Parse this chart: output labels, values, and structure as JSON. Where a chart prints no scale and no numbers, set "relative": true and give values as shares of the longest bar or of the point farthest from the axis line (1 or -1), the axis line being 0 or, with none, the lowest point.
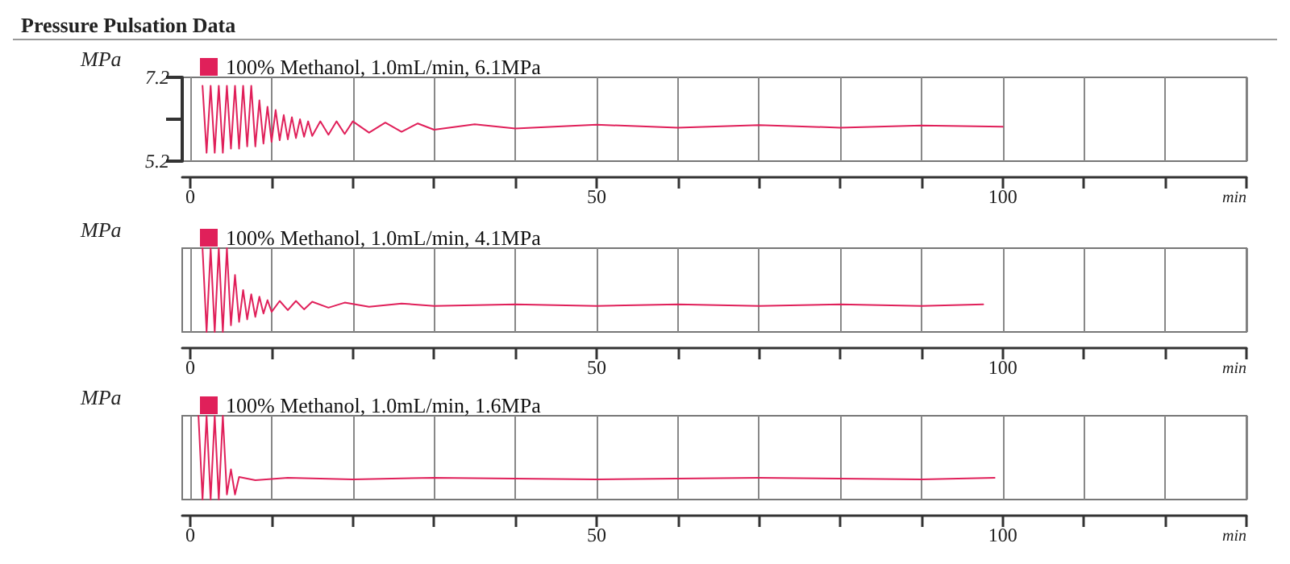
{
  "chart_data": [
    {
      "type": "line",
      "title": "Pressure Pulsation Data",
      "ylabel": "MPa",
      "xlabel": "min",
      "legend": "top left",
      "grid": "x",
      "marker": "none",
      "xlim": [
        -1,
        130
      ],
      "xticks": [
        0,
        {
          "value": 10,
          "label": null
        },
        {
          "value": 20,
          "label": null
        },
        {
          "value": 30,
          "label": null
        },
        {
          "value": 40,
          "label": null
        },
        50,
        {
          "value": 60,
          "label": null
        },
        {
          "value": 70,
          "label": null
        },
        {
          "value": 80,
          "label": null
        },
        {
          "value": 90,
          "label": null
        },
        100,
        {
          "value": 110,
          "label": null
        },
        {
          "value": 120,
          "label": null
        },
        {
          "value": 130,
          "label": null
        }
      ],
      "ylim": [
        5.2,
        7.2
      ],
      "yticks": [
        5.2,
        {
          "value": 6.2,
          "label": null
        },
        7.2
      ],
      "series": [
        {
          "name": "100% Methanol, 1.0mL/min, 6.1MPa",
          "color": "#e0205a",
          "x": [
            1.5,
            2.0,
            2.5,
            3.0,
            3.5,
            4.0,
            4.5,
            5.0,
            5.5,
            6.0,
            6.5,
            7.0,
            7.5,
            8.0,
            8.5,
            9.0,
            9.5,
            10.0,
            10.5,
            11.0,
            11.5,
            12.0,
            12.5,
            13.0,
            13.5,
            14.0,
            14.5,
            15,
            16,
            17,
            18,
            19,
            20,
            22,
            24,
            26,
            28,
            30,
            35,
            40,
            50,
            60,
            70,
            80,
            90,
            100
          ],
          "values": [
            7.0,
            5.4,
            7.0,
            5.4,
            7.0,
            5.4,
            7.0,
            5.5,
            7.0,
            5.5,
            7.0,
            5.55,
            7.0,
            5.55,
            6.65,
            5.62,
            6.5,
            5.66,
            6.42,
            5.7,
            6.3,
            5.72,
            6.25,
            5.75,
            6.2,
            5.78,
            6.15,
            5.8,
            6.15,
            5.83,
            6.15,
            5.85,
            6.15,
            5.88,
            6.12,
            5.9,
            6.1,
            5.95,
            6.08,
            5.98,
            6.07,
            6.0,
            6.06,
            6.0,
            6.05,
            6.02
          ]
        }
      ]
    },
    {
      "type": "line",
      "ylabel": "MPa",
      "xlabel": "min",
      "legend": "top left",
      "grid": "x",
      "marker": "none",
      "relative": true,
      "tick_labels": "x",
      "xlim": [
        -1,
        130
      ],
      "xticks": [
        0,
        {
          "value": 10,
          "label": null
        },
        {
          "value": 20,
          "label": null
        },
        {
          "value": 30,
          "label": null
        },
        {
          "value": 40,
          "label": null
        },
        50,
        {
          "value": 60,
          "label": null
        },
        {
          "value": 70,
          "label": null
        },
        {
          "value": 80,
          "label": null
        },
        {
          "value": 90,
          "label": null
        },
        100,
        {
          "value": 110,
          "label": null
        },
        {
          "value": 120,
          "label": null
        },
        {
          "value": 130,
          "label": null
        }
      ],
      "series": [
        {
          "name": "100% Methanol, 1.0mL/min, 4.1MPa",
          "color": "#e0205a",
          "x": [
            1.5,
            2.0,
            2.5,
            3.0,
            3.5,
            4.0,
            4.5,
            5.0,
            5.5,
            6.0,
            6.5,
            7.0,
            7.5,
            8.0,
            8.5,
            9.0,
            9.5,
            10,
            11,
            12,
            13,
            14,
            15,
            17,
            19,
            22,
            26,
            30,
            40,
            50,
            60,
            70,
            80,
            90,
            97.6
          ],
          "values": [
            1,
            0,
            1,
            0,
            1,
            0,
            1,
            0.08,
            0.68,
            0.12,
            0.5,
            0.15,
            0.45,
            0.18,
            0.42,
            0.22,
            0.38,
            0.24,
            0.37,
            0.26,
            0.37,
            0.27,
            0.36,
            0.29,
            0.35,
            0.3,
            0.34,
            0.31,
            0.33,
            0.31,
            0.33,
            0.31,
            0.33,
            0.31,
            0.33
          ]
        }
      ]
    },
    {
      "type": "line",
      "ylabel": "MPa",
      "xlabel": "min",
      "legend": "top left",
      "grid": "x",
      "marker": "none",
      "relative": true,
      "tick_labels": "x",
      "xlim": [
        -1,
        130
      ],
      "xticks": [
        0,
        {
          "value": 10,
          "label": null
        },
        {
          "value": 20,
          "label": null
        },
        {
          "value": 30,
          "label": null
        },
        {
          "value": 40,
          "label": null
        },
        50,
        {
          "value": 60,
          "label": null
        },
        {
          "value": 70,
          "label": null
        },
        {
          "value": 80,
          "label": null
        },
        {
          "value": 90,
          "label": null
        },
        100,
        {
          "value": 110,
          "label": null
        },
        {
          "value": 120,
          "label": null
        },
        {
          "value": 130,
          "label": null
        }
      ],
      "series": [
        {
          "name": "100% Methanol, 1.0mL/min, 1.6MPa",
          "color": "#e0205a",
          "x": [
            1.0,
            1.5,
            2.0,
            2.5,
            3.0,
            3.5,
            4.0,
            4.5,
            5.0,
            5.5,
            6,
            8,
            12,
            20,
            30,
            50,
            70,
            90,
            99
          ],
          "values": [
            1,
            0,
            1,
            0,
            1,
            0,
            1,
            0.06,
            0.36,
            0.06,
            0.27,
            0.23,
            0.26,
            0.24,
            0.26,
            0.24,
            0.26,
            0.24,
            0.26
          ]
        }
      ]
    }
  ]
}
